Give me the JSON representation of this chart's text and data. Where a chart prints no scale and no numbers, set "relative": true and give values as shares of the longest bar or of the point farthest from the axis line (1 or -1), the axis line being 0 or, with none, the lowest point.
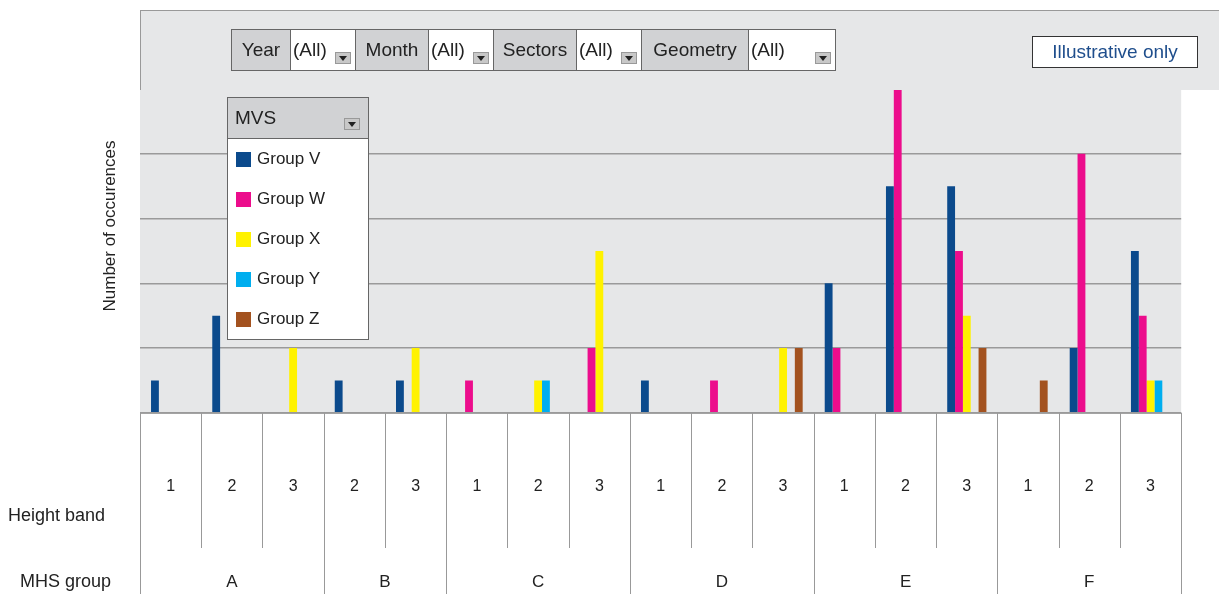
{
  "chart_data": {
    "type": "bar",
    "relative": true,
    "ylabel": "Number of occurences",
    "xlabel": "Height band",
    "legend_title": "MVS",
    "legend": "top left",
    "grid": "y",
    "categories": [
      "1",
      "2",
      "3",
      "2",
      "3",
      "1",
      "2",
      "3",
      "1",
      "2",
      "3",
      "1",
      "2",
      "3",
      "1",
      "2",
      "3"
    ],
    "series": [
      {
        "name": "Group V",
        "color": "#0b4a8c",
        "values": [
          0.1,
          0.3,
          null,
          0.1,
          0.1,
          null,
          null,
          null,
          0.1,
          null,
          null,
          0.4,
          0.7,
          0.7,
          null,
          0.2,
          0.5
        ]
      },
      {
        "name": "Group W",
        "color": "#ec0d8c",
        "values": [
          null,
          null,
          null,
          null,
          null,
          0.1,
          null,
          0.2,
          null,
          0.1,
          null,
          0.2,
          1,
          0.5,
          null,
          0.8,
          0.3
        ]
      },
      {
        "name": "Group X",
        "color": "#fff200",
        "values": [
          null,
          null,
          0.2,
          null,
          0.2,
          null,
          0.1,
          0.5,
          null,
          null,
          0.2,
          null,
          null,
          0.3,
          null,
          null,
          0.1
        ]
      },
      {
        "name": "Group Y",
        "color": "#00aeef",
        "values": [
          null,
          null,
          null,
          null,
          null,
          null,
          0.1,
          null,
          null,
          null,
          null,
          null,
          null,
          null,
          null,
          null,
          0.1
        ]
      },
      {
        "name": "Group Z",
        "color": "#a3521f",
        "values": [
          null,
          null,
          null,
          null,
          null,
          null,
          null,
          null,
          null,
          null,
          0.2,
          null,
          null,
          0.2,
          0.1,
          null,
          null
        ]
      }
    ],
    "annotations": [
      "Year",
      "(All)",
      "Month",
      "(All)",
      "Sectors",
      "(All)",
      "Geometry",
      "(All)",
      "Illustrative only",
      "MHS group",
      "A",
      "B",
      "C",
      "D",
      "E",
      "F"
    ]
  }
}
